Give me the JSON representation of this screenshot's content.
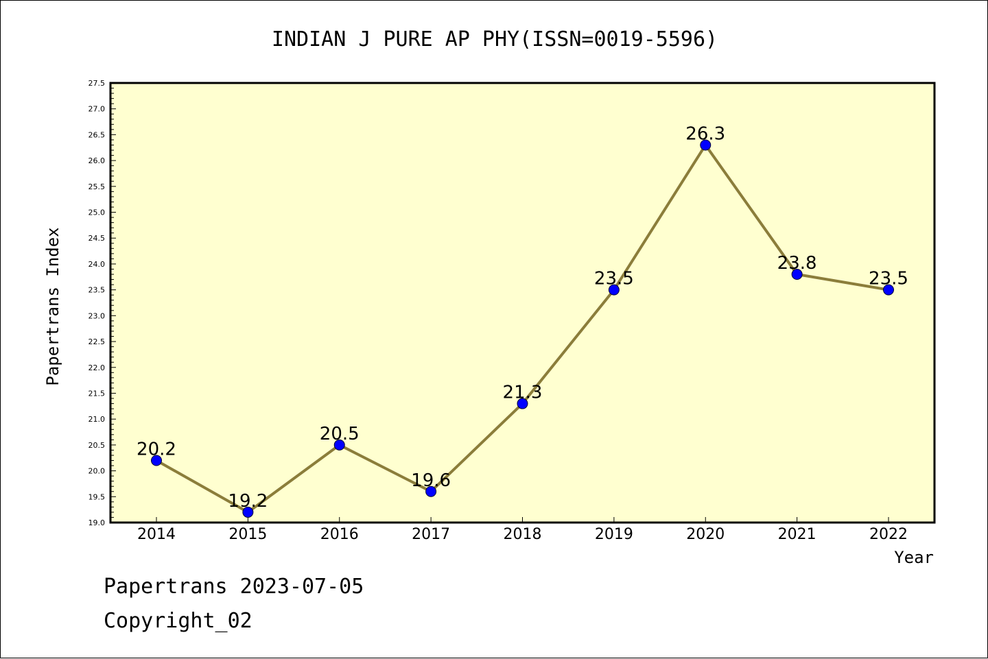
{
  "chart_data": {
    "type": "line",
    "title": "INDIAN J PURE AP PHY(ISSN=0019-5596)",
    "xlabel": "Year",
    "ylabel": "Papertrans Index",
    "categories": [
      "2014",
      "2015",
      "2016",
      "2017",
      "2018",
      "2019",
      "2020",
      "2021",
      "2022"
    ],
    "series": [
      {
        "values": [
          20.2,
          19.2,
          20.5,
          19.6,
          21.3,
          23.5,
          26.3,
          23.8,
          23.5
        ]
      }
    ],
    "data_labels": [
      "20.2",
      "19.2",
      "20.5",
      "19.6",
      "21.3",
      "23.5",
      "26.3",
      "23.8",
      "23.5"
    ],
    "ylim": [
      19.0,
      27.5
    ],
    "yticks": [
      "19.0",
      "19.5",
      "20.0",
      "20.5",
      "21.0",
      "21.5",
      "22.0",
      "22.5",
      "23.0",
      "23.5",
      "24.0",
      "24.5",
      "25.0",
      "25.5",
      "26.0",
      "26.5",
      "27.0",
      "27.5"
    ],
    "grid": false,
    "colors": {
      "plot_background": "#ffffd0",
      "line": "#8b7d3a",
      "marker": "#0000ff"
    }
  },
  "footer": {
    "line1": "Papertrans 2023-07-05",
    "line2": "Copyright_02"
  }
}
